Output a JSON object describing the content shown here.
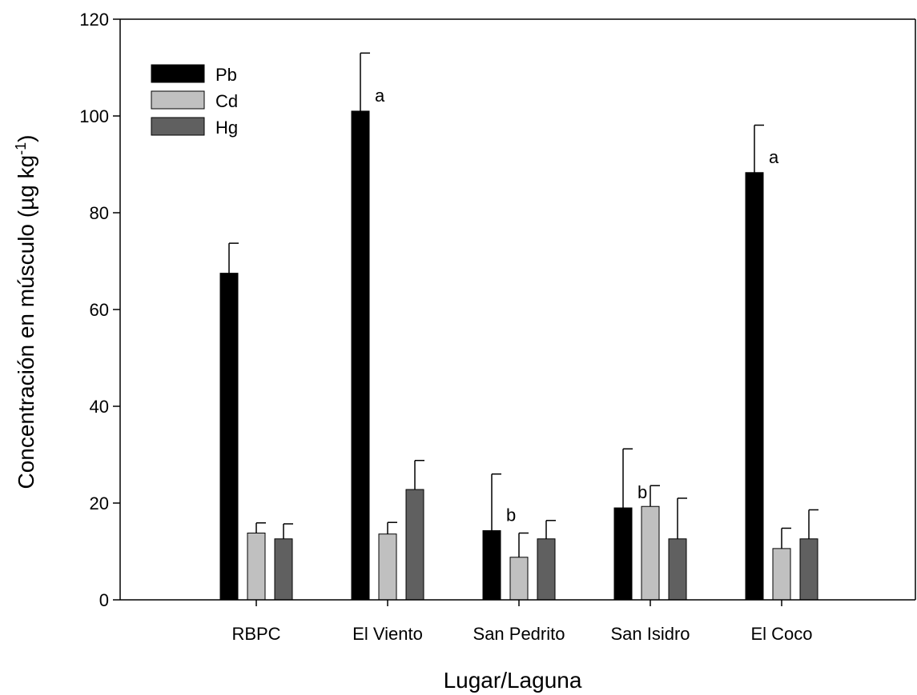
{
  "chart_data": {
    "type": "bar",
    "xlabel": "Lugar/Laguna",
    "ylabel": "Concentración en músculo (µg kg",
    "ylabel_sup": "-1",
    "ylabel_close": ")",
    "ylim": [
      0,
      120
    ],
    "yticks": [
      0,
      20,
      40,
      60,
      80,
      100,
      120
    ],
    "grid": false,
    "legend_position": "top-left",
    "categories": [
      "RBPC",
      "El Viento",
      "San Pedrito",
      "San Isidro",
      "El Coco"
    ],
    "series": [
      {
        "name": "Pb",
        "color": "#000000",
        "values": [
          67.5,
          101,
          14.3,
          19,
          88.3
        ],
        "errors": [
          6.2,
          12,
          11.7,
          12.2,
          9.8
        ]
      },
      {
        "name": "Cd",
        "color": "#c0c0c0",
        "values": [
          13.8,
          13.6,
          8.8,
          19.3,
          10.6
        ],
        "errors": [
          2.1,
          2.4,
          5,
          4.3,
          4.2
        ]
      },
      {
        "name": "Hg",
        "color": "#606060",
        "values": [
          12.6,
          22.8,
          12.6,
          12.6,
          12.6
        ],
        "errors": [
          3.1,
          6,
          3.8,
          8.4,
          6
        ]
      }
    ],
    "annotations": [
      {
        "category": "El Viento",
        "series": "Pb",
        "text": "a"
      },
      {
        "category": "San Pedrito",
        "series": "Pb",
        "text": "b"
      },
      {
        "category": "San Isidro",
        "series": "Pb",
        "text": "b"
      },
      {
        "category": "El Coco",
        "series": "Pb",
        "text": "a"
      }
    ]
  }
}
